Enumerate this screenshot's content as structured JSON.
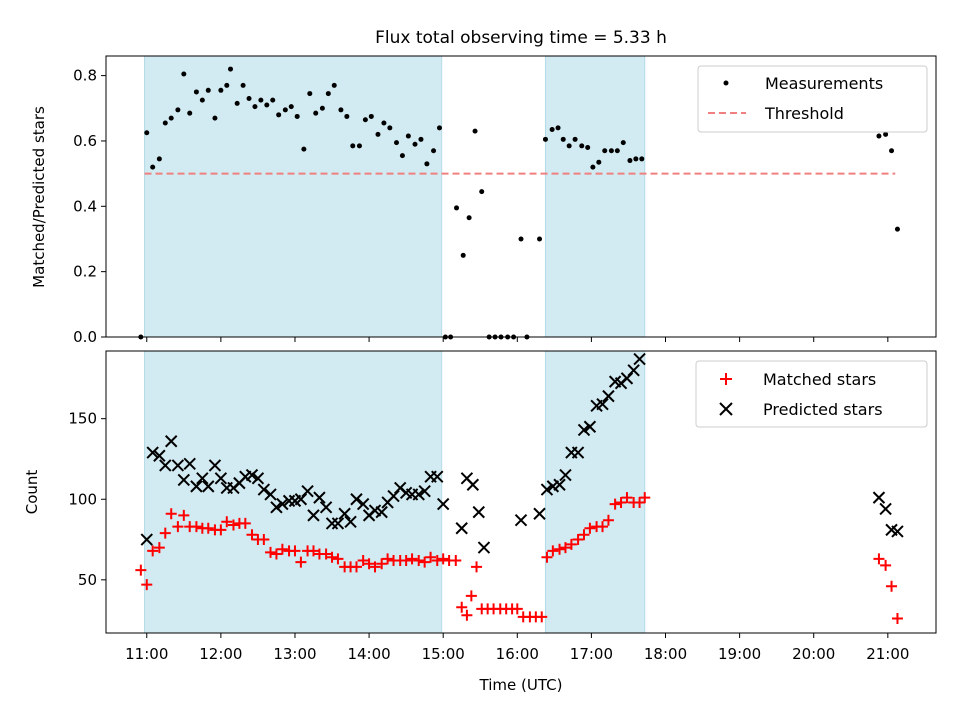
{
  "chart_data": {
    "type": "scatter",
    "title": "Flux total observing time = 5.33 h",
    "xlabel": "Time (UTC)",
    "xlim": [
      10.45,
      21.65
    ],
    "xticks": [
      {
        "v": 11,
        "label": "11:00"
      },
      {
        "v": 12,
        "label": "12:00"
      },
      {
        "v": 13,
        "label": "13:00"
      },
      {
        "v": 14,
        "label": "14:00"
      },
      {
        "v": 15,
        "label": "15:00"
      },
      {
        "v": 16,
        "label": "16:00"
      },
      {
        "v": 17,
        "label": "17:00"
      },
      {
        "v": 18,
        "label": "18:00"
      },
      {
        "v": 19,
        "label": "19:00"
      },
      {
        "v": 20,
        "label": "20:00"
      },
      {
        "v": 21,
        "label": "21:00"
      }
    ],
    "shaded_intervals": [
      [
        10.97,
        14.98
      ],
      [
        16.38,
        17.72
      ]
    ],
    "shade_color": "#add8e6",
    "top_panel": {
      "ylabel": "Matched/Predicted stars",
      "ylim": [
        0,
        0.86
      ],
      "yticks": [
        {
          "v": 0,
          "label": "0.0"
        },
        {
          "v": 0.2,
          "label": "0.2"
        },
        {
          "v": 0.4,
          "label": "0.4"
        },
        {
          "v": 0.6,
          "label": "0.6"
        },
        {
          "v": 0.8,
          "label": "0.8"
        }
      ],
      "legend": {
        "position": "upper right",
        "entries": [
          "Measurements",
          "Threshold"
        ]
      },
      "threshold": {
        "name": "Threshold",
        "value": 0.5,
        "x_range": [
          10.97,
          21.1
        ],
        "color": "#f08080"
      },
      "measurements": {
        "name": "Measurements",
        "color": "#000000",
        "points": [
          [
            10.92,
            0.0
          ],
          [
            11.0,
            0.625
          ],
          [
            11.08,
            0.52
          ],
          [
            11.17,
            0.545
          ],
          [
            11.25,
            0.655
          ],
          [
            11.33,
            0.67
          ],
          [
            11.42,
            0.695
          ],
          [
            11.5,
            0.805
          ],
          [
            11.58,
            0.685
          ],
          [
            11.67,
            0.75
          ],
          [
            11.75,
            0.725
          ],
          [
            11.83,
            0.755
          ],
          [
            11.92,
            0.67
          ],
          [
            12.0,
            0.755
          ],
          [
            12.08,
            0.77
          ],
          [
            12.13,
            0.82
          ],
          [
            12.22,
            0.715
          ],
          [
            12.3,
            0.77
          ],
          [
            12.38,
            0.73
          ],
          [
            12.46,
            0.705
          ],
          [
            12.54,
            0.725
          ],
          [
            12.62,
            0.71
          ],
          [
            12.7,
            0.725
          ],
          [
            12.78,
            0.68
          ],
          [
            12.87,
            0.695
          ],
          [
            12.95,
            0.705
          ],
          [
            13.03,
            0.675
          ],
          [
            13.12,
            0.575
          ],
          [
            13.2,
            0.745
          ],
          [
            13.28,
            0.685
          ],
          [
            13.37,
            0.7
          ],
          [
            13.45,
            0.745
          ],
          [
            13.53,
            0.77
          ],
          [
            13.62,
            0.695
          ],
          [
            13.7,
            0.675
          ],
          [
            13.78,
            0.585
          ],
          [
            13.87,
            0.585
          ],
          [
            13.95,
            0.665
          ],
          [
            14.03,
            0.675
          ],
          [
            14.12,
            0.62
          ],
          [
            14.2,
            0.655
          ],
          [
            14.28,
            0.64
          ],
          [
            14.37,
            0.595
          ],
          [
            14.45,
            0.555
          ],
          [
            14.53,
            0.615
          ],
          [
            14.62,
            0.59
          ],
          [
            14.7,
            0.605
          ],
          [
            14.78,
            0.53
          ],
          [
            14.87,
            0.57
          ],
          [
            14.95,
            0.64
          ],
          [
            15.03,
            0.0
          ],
          [
            15.1,
            0.0
          ],
          [
            15.18,
            0.395
          ],
          [
            15.27,
            0.25
          ],
          [
            15.35,
            0.365
          ],
          [
            15.43,
            0.63
          ],
          [
            15.52,
            0.445
          ],
          [
            15.62,
            0.0
          ],
          [
            15.7,
            0.0
          ],
          [
            15.78,
            0.0
          ],
          [
            15.87,
            0.0
          ],
          [
            15.95,
            0.0
          ],
          [
            16.05,
            0.3
          ],
          [
            16.13,
            0.0
          ],
          [
            16.3,
            0.3
          ],
          [
            16.38,
            0.605
          ],
          [
            16.47,
            0.635
          ],
          [
            16.55,
            0.64
          ],
          [
            16.62,
            0.605
          ],
          [
            16.7,
            0.585
          ],
          [
            16.78,
            0.605
          ],
          [
            16.87,
            0.585
          ],
          [
            16.95,
            0.58
          ],
          [
            17.02,
            0.52
          ],
          [
            17.1,
            0.535
          ],
          [
            17.18,
            0.57
          ],
          [
            17.27,
            0.57
          ],
          [
            17.35,
            0.57
          ],
          [
            17.43,
            0.595
          ],
          [
            17.52,
            0.54
          ],
          [
            17.6,
            0.545
          ],
          [
            17.68,
            0.545
          ],
          [
            20.88,
            0.615
          ],
          [
            20.97,
            0.62
          ],
          [
            21.05,
            0.57
          ],
          [
            21.13,
            0.33
          ]
        ]
      }
    },
    "bottom_panel": {
      "ylabel": "Count",
      "ylim": [
        17,
        192
      ],
      "yticks": [
        {
          "v": 50,
          "label": "50"
        },
        {
          "v": 100,
          "label": "100"
        },
        {
          "v": 150,
          "label": "150"
        }
      ],
      "legend": {
        "position": "upper right",
        "entries": [
          "Matched stars",
          "Predicted stars"
        ]
      },
      "series": [
        {
          "name": "Matched stars",
          "marker": "plus",
          "color": "#ff0000",
          "points": [
            [
              10.92,
              56
            ],
            [
              11.0,
              47
            ],
            [
              11.08,
              68
            ],
            [
              11.17,
              70
            ],
            [
              11.25,
              79
            ],
            [
              11.33,
              91
            ],
            [
              11.42,
              83
            ],
            [
              11.5,
              90
            ],
            [
              11.58,
              83
            ],
            [
              11.67,
              83
            ],
            [
              11.75,
              82
            ],
            [
              11.83,
              82
            ],
            [
              11.92,
              81
            ],
            [
              12.0,
              81
            ],
            [
              12.08,
              86
            ],
            [
              12.17,
              84
            ],
            [
              12.25,
              85
            ],
            [
              12.33,
              85
            ],
            [
              12.42,
              78
            ],
            [
              12.5,
              75
            ],
            [
              12.58,
              75
            ],
            [
              12.67,
              67
            ],
            [
              12.75,
              66
            ],
            [
              12.83,
              69
            ],
            [
              12.92,
              68
            ],
            [
              13.0,
              68
            ],
            [
              13.08,
              61
            ],
            [
              13.17,
              68
            ],
            [
              13.25,
              68
            ],
            [
              13.33,
              66
            ],
            [
              13.42,
              66
            ],
            [
              13.5,
              64
            ],
            [
              13.58,
              63
            ],
            [
              13.67,
              58
            ],
            [
              13.75,
              58
            ],
            [
              13.83,
              58
            ],
            [
              13.92,
              62
            ],
            [
              14.0,
              60
            ],
            [
              14.08,
              58
            ],
            [
              14.17,
              60
            ],
            [
              14.25,
              63
            ],
            [
              14.33,
              62
            ],
            [
              14.42,
              62
            ],
            [
              14.5,
              62
            ],
            [
              14.58,
              63
            ],
            [
              14.67,
              62
            ],
            [
              14.75,
              61
            ],
            [
              14.83,
              64
            ],
            [
              14.92,
              62
            ],
            [
              15.0,
              63
            ],
            [
              15.08,
              62
            ],
            [
              15.17,
              62
            ],
            [
              15.25,
              33
            ],
            [
              15.32,
              28
            ],
            [
              15.38,
              40
            ],
            [
              15.45,
              58
            ],
            [
              15.52,
              32
            ],
            [
              15.6,
              32
            ],
            [
              15.68,
              32
            ],
            [
              15.77,
              32
            ],
            [
              15.85,
              32
            ],
            [
              15.93,
              32
            ],
            [
              16.0,
              32
            ],
            [
              16.08,
              27
            ],
            [
              16.17,
              27
            ],
            [
              16.25,
              27
            ],
            [
              16.33,
              27
            ],
            [
              16.4,
              64
            ],
            [
              16.48,
              68
            ],
            [
              16.57,
              69
            ],
            [
              16.65,
              70
            ],
            [
              16.73,
              72
            ],
            [
              16.82,
              75
            ],
            [
              16.9,
              78
            ],
            [
              16.98,
              82
            ],
            [
              17.07,
              83
            ],
            [
              17.15,
              83
            ],
            [
              17.23,
              87
            ],
            [
              17.32,
              97
            ],
            [
              17.4,
              98
            ],
            [
              17.48,
              101
            ],
            [
              17.57,
              98
            ],
            [
              17.65,
              98
            ],
            [
              17.72,
              101
            ],
            [
              20.88,
              63
            ],
            [
              20.97,
              59
            ],
            [
              21.05,
              46
            ],
            [
              21.13,
              26
            ]
          ]
        },
        {
          "name": "Predicted stars",
          "marker": "x",
          "color": "#000000",
          "points": [
            [
              11.0,
              75
            ],
            [
              11.08,
              129
            ],
            [
              11.17,
              127
            ],
            [
              11.25,
              121
            ],
            [
              11.33,
              136
            ],
            [
              11.42,
              121
            ],
            [
              11.5,
              112
            ],
            [
              11.58,
              122
            ],
            [
              11.67,
              108
            ],
            [
              11.75,
              113
            ],
            [
              11.83,
              108
            ],
            [
              11.92,
              121
            ],
            [
              12.0,
              113
            ],
            [
              12.08,
              107
            ],
            [
              12.17,
              107
            ],
            [
              12.25,
              110
            ],
            [
              12.33,
              114
            ],
            [
              12.42,
              115
            ],
            [
              12.5,
              113
            ],
            [
              12.58,
              106
            ],
            [
              12.67,
              103
            ],
            [
              12.75,
              95
            ],
            [
              12.83,
              97
            ],
            [
              12.92,
              99
            ],
            [
              13.0,
              99
            ],
            [
              13.08,
              100
            ],
            [
              13.17,
              105
            ],
            [
              13.25,
              90
            ],
            [
              13.33,
              101
            ],
            [
              13.42,
              95
            ],
            [
              13.5,
              85
            ],
            [
              13.58,
              85
            ],
            [
              13.67,
              91
            ],
            [
              13.75,
              86
            ],
            [
              13.83,
              100
            ],
            [
              13.92,
              97
            ],
            [
              14.0,
              90
            ],
            [
              14.08,
              93
            ],
            [
              14.17,
              92
            ],
            [
              14.25,
              98
            ],
            [
              14.33,
              102
            ],
            [
              14.42,
              107
            ],
            [
              14.5,
              104
            ],
            [
              14.58,
              103
            ],
            [
              14.67,
              103
            ],
            [
              14.75,
              105
            ],
            [
              14.83,
              114
            ],
            [
              14.92,
              114
            ],
            [
              15.0,
              97
            ],
            [
              15.25,
              82
            ],
            [
              15.32,
              113
            ],
            [
              15.4,
              109
            ],
            [
              15.48,
              92
            ],
            [
              15.55,
              70
            ],
            [
              16.05,
              87
            ],
            [
              16.3,
              91
            ],
            [
              16.4,
              106
            ],
            [
              16.48,
              108
            ],
            [
              16.57,
              109
            ],
            [
              16.65,
              115
            ],
            [
              16.73,
              129
            ],
            [
              16.82,
              129
            ],
            [
              16.9,
              143
            ],
            [
              16.98,
              145
            ],
            [
              17.07,
              158
            ],
            [
              17.15,
              159
            ],
            [
              17.23,
              164
            ],
            [
              17.32,
              173
            ],
            [
              17.4,
              172
            ],
            [
              17.48,
              175
            ],
            [
              17.57,
              180
            ],
            [
              17.65,
              187
            ],
            [
              20.88,
              101
            ],
            [
              20.97,
              94
            ],
            [
              21.05,
              81
            ],
            [
              21.13,
              80
            ]
          ]
        }
      ]
    }
  }
}
